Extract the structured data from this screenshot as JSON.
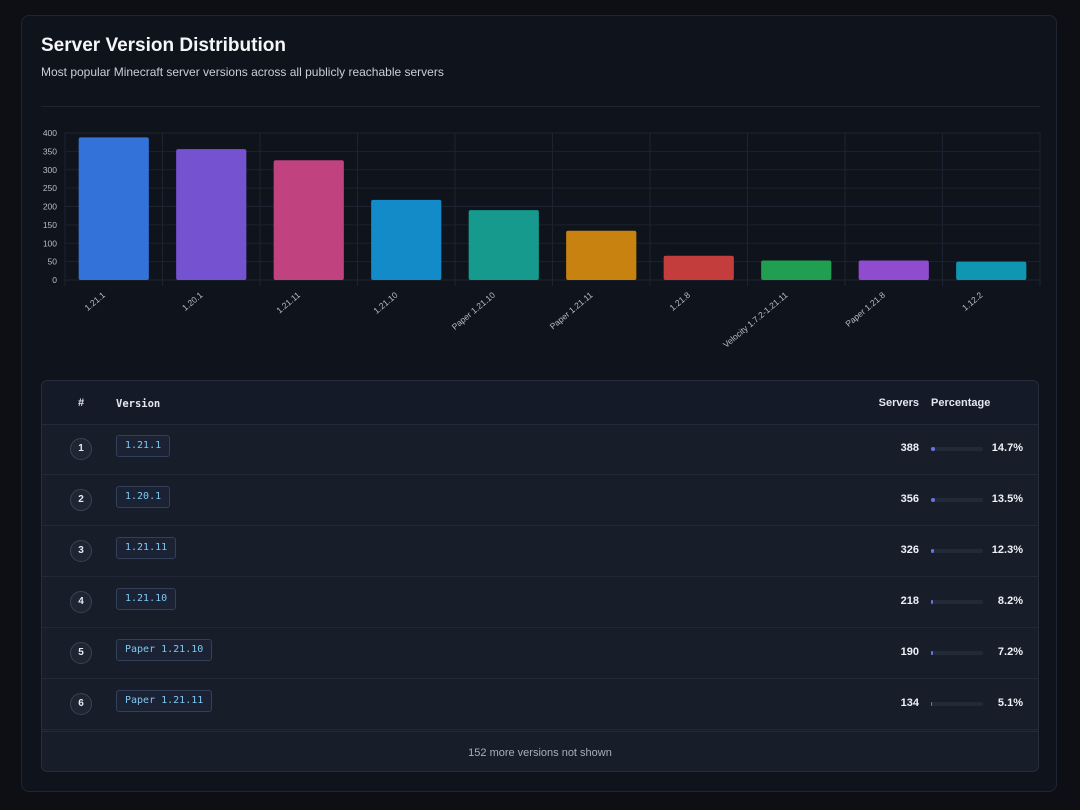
{
  "header": {
    "title": "Server Version Distribution",
    "subtitle": "Most popular Minecraft server versions across all publicly reachable servers"
  },
  "chart_data": {
    "type": "bar",
    "categories": [
      "1.21.1",
      "1.20.1",
      "1.21.11",
      "1.21.10",
      "Paper 1.21.10",
      "Paper 1.21.11",
      "1.21.8",
      "Velocity 1.7.2-1.21.11",
      "Paper 1.21.8",
      "1.12.2"
    ],
    "values": [
      388,
      356,
      326,
      218,
      190,
      134,
      66,
      53,
      53,
      50
    ],
    "colors": [
      "#3372d8",
      "#7552d0",
      "#c0427e",
      "#138bc9",
      "#169a8e",
      "#c88210",
      "#c33d3d",
      "#1f9f4f",
      "#8f4ccf",
      "#0f97b1"
    ],
    "ylim": [
      0,
      400
    ],
    "yticks": [
      0,
      50,
      100,
      150,
      200,
      250,
      300,
      350,
      400
    ],
    "grid": true,
    "legend": "none"
  },
  "table": {
    "headers": {
      "rank": "#",
      "version": "Version",
      "servers": "Servers",
      "percentage": "Percentage"
    },
    "rows": [
      {
        "rank": "1",
        "version": "1.21.1",
        "servers": "388",
        "percent": "14.7%",
        "fill": 14.7
      },
      {
        "rank": "2",
        "version": "1.20.1",
        "servers": "356",
        "percent": "13.5%",
        "fill": 13.5
      },
      {
        "rank": "3",
        "version": "1.21.11",
        "servers": "326",
        "percent": "12.3%",
        "fill": 12.3
      },
      {
        "rank": "4",
        "version": "1.21.10",
        "servers": "218",
        "percent": "8.2%",
        "fill": 8.2
      },
      {
        "rank": "5",
        "version": "Paper 1.21.10",
        "servers": "190",
        "percent": "7.2%",
        "fill": 7.2
      },
      {
        "rank": "6",
        "version": "Paper 1.21.11",
        "servers": "134",
        "percent": "5.1%",
        "fill": 5.1
      }
    ],
    "footer": "152 more versions not shown"
  }
}
